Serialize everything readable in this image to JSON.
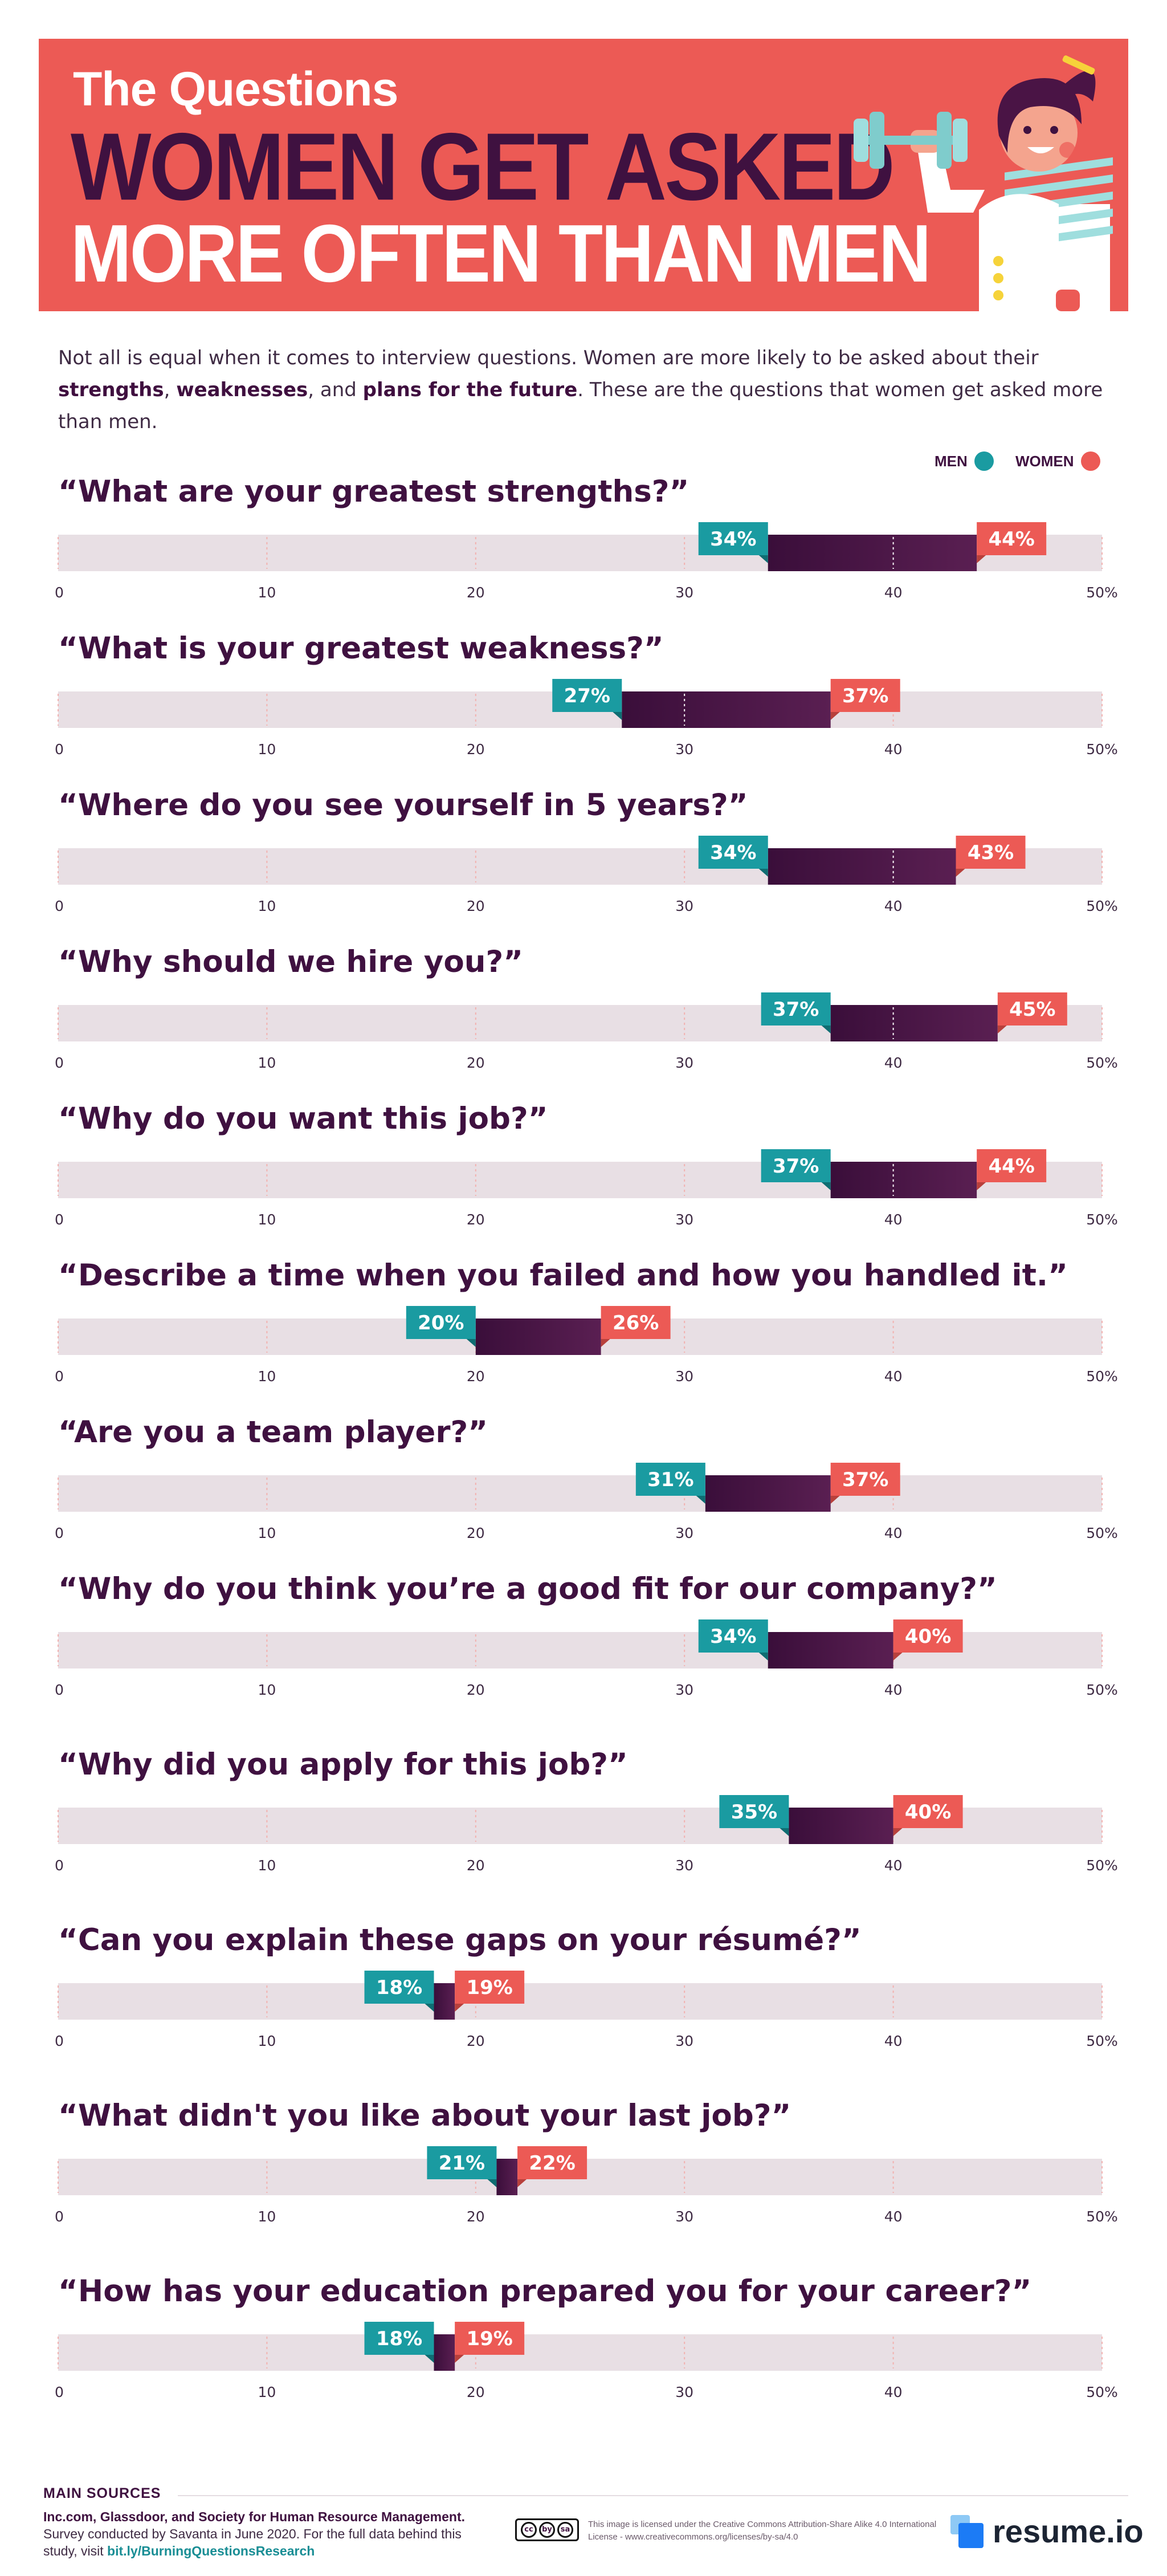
{
  "header": {
    "line1": "The Questions",
    "line2": "WOMEN GET ASKED",
    "line3": "MORE OFTEN THAN MEN"
  },
  "intro": {
    "part1": "Not all is equal when it comes to interview questions. Women are more likely to be asked about their ",
    "strengths": "strengths",
    "comma1": ", ",
    "weaknesses": "weaknesses",
    "part2": ", and ",
    "plans": "plans for the future",
    "part3": ". These are the questions that women get asked more than men."
  },
  "legend": {
    "men": "MEN",
    "women": "WOMEN"
  },
  "colors": {
    "men": "#1a9ba1",
    "women": "#ec5a55",
    "range": "#4a1445",
    "track": "#e8dfe4",
    "title": "#3f1140"
  },
  "chart_data": {
    "type": "bar",
    "subtype": "dumbbell-range",
    "xlim": [
      0,
      50
    ],
    "ticks": [
      "0",
      "10",
      "20",
      "30",
      "40",
      "50%"
    ],
    "series_names": [
      "MEN",
      "WOMEN"
    ],
    "questions": [
      {
        "title": "“What are your greatest strengths?”",
        "men": 34,
        "women": 44,
        "men_label": "34%",
        "women_label": "44%"
      },
      {
        "title": "“What is your greatest weakness?”",
        "men": 27,
        "women": 37,
        "men_label": "27%",
        "women_label": "37%"
      },
      {
        "title": "“Where do you see yourself in 5 years?”",
        "men": 34,
        "women": 43,
        "men_label": "34%",
        "women_label": "43%"
      },
      {
        "title": "“Why should we hire you?”",
        "men": 37,
        "women": 45,
        "men_label": "37%",
        "women_label": "45%"
      },
      {
        "title": "“Why do you want this job?”",
        "men": 37,
        "women": 44,
        "men_label": "37%",
        "women_label": "44%"
      },
      {
        "title": "“Describe a time when you failed and how you handled it.”",
        "men": 20,
        "women": 26,
        "men_label": "20%",
        "women_label": "26%"
      },
      {
        "title": "“Are you a team player?”",
        "men": 31,
        "women": 37,
        "men_label": "31%",
        "women_label": "37%"
      },
      {
        "title": "“Why do you think you’re a good fit for our company?”",
        "men": 34,
        "women": 40,
        "men_label": "34%",
        "women_label": "40%"
      },
      {
        "title": "“Why did you apply for this job?”",
        "men": 35,
        "women": 40,
        "men_label": "35%",
        "women_label": "40%"
      },
      {
        "title": "“Can you explain these gaps on your résumé?”",
        "men": 18,
        "women": 19,
        "men_label": "18%",
        "women_label": "19%"
      },
      {
        "title": "“What didn't you like about your last job?”",
        "men": 21,
        "women": 22,
        "men_label": "21%",
        "women_label": "22%"
      },
      {
        "title": "“How has your education prepared you for your career?”",
        "men": 18,
        "women": 19,
        "men_label": "18%",
        "women_label": "19%"
      }
    ]
  },
  "footer": {
    "sources_heading": "MAIN SOURCES",
    "sources_bold": "Inc.com, Glassdoor, and Society for Human Resource Management.",
    "sources_text": " Survey conducted by Savanta in June 2020. For the full data behind this study, visit ",
    "sources_link": "bit.ly/BurningQuestionsResearch",
    "license": "This image is licensed under the Creative Commons Attribution-Share Alike 4.0 International License - www.creativecommons.org/licenses/by-sa/4.0",
    "brand": "resume.io"
  }
}
